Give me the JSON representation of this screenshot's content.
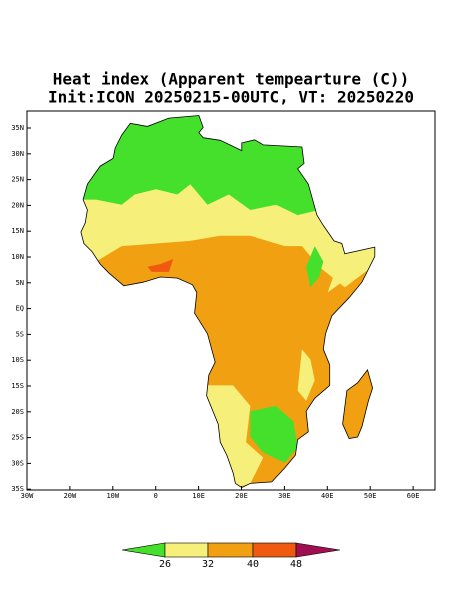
{
  "title": [
    "Heat index (Apparent tempearture (C))",
    "Init:ICON 20250215-00UTC, VT: 20250220"
  ],
  "lat_ticks": [
    "35N",
    "30N",
    "25N",
    "20N",
    "15N",
    "10N",
    "5N",
    "EQ",
    "5S",
    "10S",
    "15S",
    "20S",
    "25S",
    "30S",
    "35S"
  ],
  "lon_ticks": [
    "30W",
    "20W",
    "10W",
    "0",
    "10E",
    "20E",
    "30E",
    "40E",
    "50E",
    "60E"
  ],
  "colorbar": {
    "levels": [
      26,
      32,
      40,
      48
    ],
    "colors": [
      "#44e02c",
      "#f6f07a",
      "#f0a010",
      "#f05a10",
      "#a01050"
    ]
  }
}
